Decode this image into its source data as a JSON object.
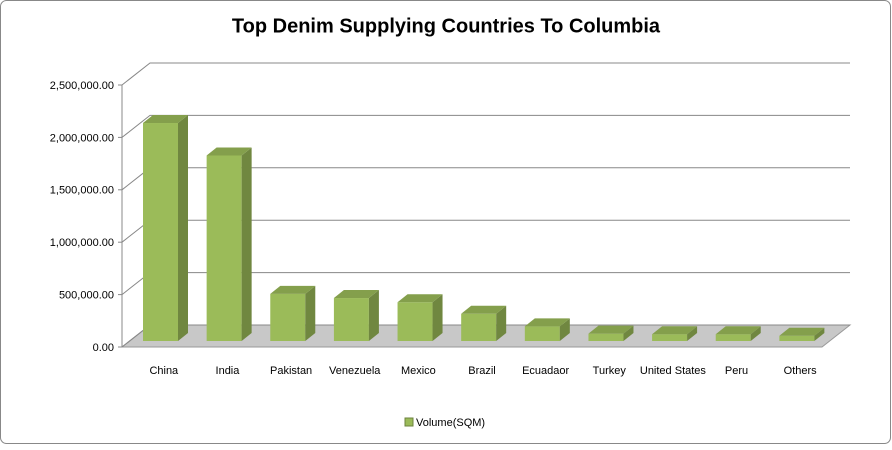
{
  "chart_data": {
    "type": "bar3d",
    "title": "Top Denim Supplying Countries To Columbia",
    "categories": [
      "China",
      "India",
      "Pakistan",
      "Venezuela",
      "Mexico",
      "Brazil",
      "Ecuadaor",
      "Turkey",
      "United States",
      "Peru",
      "Others"
    ],
    "series": [
      {
        "name": "Volume(SQM)",
        "color": "#9bbb59",
        "values": [
          2080000,
          1770000,
          450000,
          410000,
          370000,
          260000,
          140000,
          70000,
          65000,
          65000,
          50000
        ]
      }
    ],
    "ylim": [
      0,
      2500000
    ],
    "yticks": [
      {
        "value": 0,
        "label": "0.00"
      },
      {
        "value": 500000,
        "label": "500,000.00"
      },
      {
        "value": 1000000,
        "label": "1,000,000.00"
      },
      {
        "value": 1500000,
        "label": "1,500,000.00"
      },
      {
        "value": 2000000,
        "label": "2,000,000.00"
      },
      {
        "value": 2500000,
        "label": "2,500,000.00"
      }
    ],
    "grid": true,
    "legend": "bottom"
  }
}
